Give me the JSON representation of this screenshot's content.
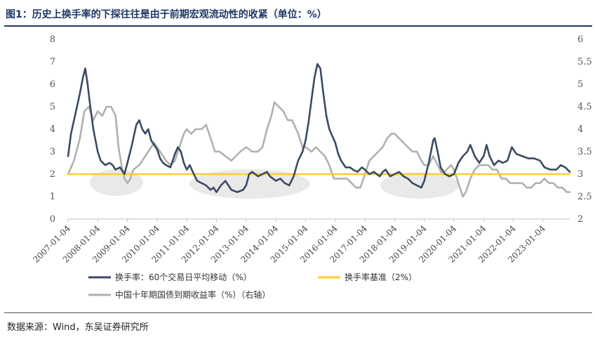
{
  "title": "图1：历史上换手率的下探往往是由于前期宏观流动性的收紧（单位：%）",
  "source": "数据来源：Wind，东吴证券研究所",
  "chart_data": {
    "type": "line",
    "title": "图1：历史上换手率的下探往往是由于前期宏观流动性的收紧（单位：%）",
    "xlabel": "",
    "ylabel": "",
    "y_left": {
      "min": 0,
      "max": 8,
      "ticks": [
        "0",
        "1",
        "2",
        "3",
        "4",
        "5",
        "6",
        "7",
        "8"
      ]
    },
    "y_right": {
      "min": 2,
      "max": 6,
      "ticks": [
        "2",
        "2.5",
        "3",
        "3.5",
        "4",
        "4.5",
        "5",
        "5.5",
        "6"
      ]
    },
    "x_ticks": [
      "2007-01-04",
      "2008-01-04",
      "2009-01-04",
      "2010-01-04",
      "2011-01-04",
      "2012-01-04",
      "2013-01-04",
      "2014-01-04",
      "2015-01-04",
      "2016-01-04",
      "2017-01-04",
      "2018-01-04",
      "2019-01-04",
      "2020-01-04",
      "2021-01-04",
      "2022-01-04",
      "2023-01-04"
    ],
    "x_range": [
      2007.0,
      2023.9
    ],
    "grid": false,
    "legend_position": "bottom",
    "series": [
      {
        "name": "换手率：60个交易日平均移动（%）",
        "axis": "left",
        "color": "#3b4a63",
        "points": [
          [
            2007.0,
            2.8
          ],
          [
            2007.1,
            3.8
          ],
          [
            2007.25,
            4.7
          ],
          [
            2007.4,
            5.6
          ],
          [
            2007.5,
            6.3
          ],
          [
            2007.58,
            6.7
          ],
          [
            2007.66,
            6.0
          ],
          [
            2007.75,
            5.0
          ],
          [
            2007.85,
            4.0
          ],
          [
            2008.0,
            3.0
          ],
          [
            2008.1,
            2.6
          ],
          [
            2008.25,
            2.4
          ],
          [
            2008.4,
            2.5
          ],
          [
            2008.5,
            2.4
          ],
          [
            2008.6,
            2.2
          ],
          [
            2008.75,
            2.3
          ],
          [
            2008.9,
            2.0
          ],
          [
            2009.0,
            2.5
          ],
          [
            2009.15,
            3.3
          ],
          [
            2009.3,
            4.2
          ],
          [
            2009.4,
            4.4
          ],
          [
            2009.5,
            4.0
          ],
          [
            2009.6,
            3.8
          ],
          [
            2009.7,
            4.0
          ],
          [
            2009.8,
            3.5
          ],
          [
            2009.9,
            3.3
          ],
          [
            2010.0,
            3.1
          ],
          [
            2010.1,
            2.7
          ],
          [
            2010.2,
            2.5
          ],
          [
            2010.3,
            2.4
          ],
          [
            2010.45,
            2.3
          ],
          [
            2010.6,
            2.9
          ],
          [
            2010.7,
            3.2
          ],
          [
            2010.8,
            3.0
          ],
          [
            2010.9,
            2.5
          ],
          [
            2011.0,
            2.2
          ],
          [
            2011.1,
            2.4
          ],
          [
            2011.2,
            2.1
          ],
          [
            2011.35,
            1.7
          ],
          [
            2011.5,
            1.6
          ],
          [
            2011.65,
            1.5
          ],
          [
            2011.8,
            1.3
          ],
          [
            2011.9,
            1.4
          ],
          [
            2012.0,
            1.2
          ],
          [
            2012.15,
            1.5
          ],
          [
            2012.3,
            1.7
          ],
          [
            2012.4,
            1.5
          ],
          [
            2012.5,
            1.3
          ],
          [
            2012.7,
            1.2
          ],
          [
            2012.9,
            1.3
          ],
          [
            2013.0,
            1.5
          ],
          [
            2013.1,
            2.0
          ],
          [
            2013.2,
            2.1
          ],
          [
            2013.4,
            1.9
          ],
          [
            2013.55,
            2.0
          ],
          [
            2013.7,
            2.1
          ],
          [
            2013.8,
            1.9
          ],
          [
            2014.0,
            1.7
          ],
          [
            2014.15,
            1.8
          ],
          [
            2014.3,
            1.6
          ],
          [
            2014.45,
            1.5
          ],
          [
            2014.6,
            1.9
          ],
          [
            2014.75,
            2.6
          ],
          [
            2014.9,
            3.0
          ],
          [
            2015.0,
            3.5
          ],
          [
            2015.1,
            4.3
          ],
          [
            2015.2,
            5.3
          ],
          [
            2015.3,
            6.3
          ],
          [
            2015.4,
            6.9
          ],
          [
            2015.5,
            6.7
          ],
          [
            2015.6,
            5.6
          ],
          [
            2015.7,
            4.6
          ],
          [
            2015.8,
            4.0
          ],
          [
            2015.9,
            3.7
          ],
          [
            2016.0,
            3.4
          ],
          [
            2016.1,
            2.9
          ],
          [
            2016.2,
            2.6
          ],
          [
            2016.35,
            2.3
          ],
          [
            2016.5,
            2.3
          ],
          [
            2016.6,
            2.2
          ],
          [
            2016.75,
            2.1
          ],
          [
            2016.9,
            2.3
          ],
          [
            2017.0,
            2.2
          ],
          [
            2017.15,
            2.0
          ],
          [
            2017.3,
            2.1
          ],
          [
            2017.5,
            1.9
          ],
          [
            2017.6,
            2.1
          ],
          [
            2017.7,
            2.2
          ],
          [
            2017.85,
            1.9
          ],
          [
            2018.0,
            2.0
          ],
          [
            2018.15,
            2.1
          ],
          [
            2018.3,
            1.9
          ],
          [
            2018.45,
            1.8
          ],
          [
            2018.6,
            1.6
          ],
          [
            2018.75,
            1.5
          ],
          [
            2018.9,
            1.4
          ],
          [
            2019.0,
            1.7
          ],
          [
            2019.15,
            2.5
          ],
          [
            2019.3,
            3.5
          ],
          [
            2019.35,
            3.6
          ],
          [
            2019.45,
            3.0
          ],
          [
            2019.55,
            2.3
          ],
          [
            2019.7,
            2.0
          ],
          [
            2019.85,
            1.9
          ],
          [
            2020.0,
            2.0
          ],
          [
            2020.15,
            2.5
          ],
          [
            2020.3,
            2.8
          ],
          [
            2020.45,
            3.0
          ],
          [
            2020.55,
            3.3
          ],
          [
            2020.7,
            2.8
          ],
          [
            2020.85,
            2.5
          ],
          [
            2021.0,
            2.8
          ],
          [
            2021.1,
            3.3
          ],
          [
            2021.2,
            2.8
          ],
          [
            2021.35,
            2.4
          ],
          [
            2021.5,
            2.6
          ],
          [
            2021.65,
            2.5
          ],
          [
            2021.8,
            2.6
          ],
          [
            2021.95,
            3.2
          ],
          [
            2022.1,
            2.9
          ],
          [
            2022.3,
            2.8
          ],
          [
            2022.5,
            2.7
          ],
          [
            2022.7,
            2.7
          ],
          [
            2022.9,
            2.6
          ],
          [
            2023.05,
            2.3
          ],
          [
            2023.25,
            2.2
          ],
          [
            2023.45,
            2.2
          ],
          [
            2023.6,
            2.4
          ],
          [
            2023.75,
            2.3
          ],
          [
            2023.9,
            2.1
          ]
        ]
      },
      {
        "name": "换手率基准（2%）",
        "axis": "left",
        "color": "#ffcc33",
        "points": [
          [
            2007.0,
            2.0
          ],
          [
            2023.9,
            2.0
          ]
        ]
      },
      {
        "name": "中国十年期国债到期收益率（%）（右轴）",
        "axis": "right",
        "color": "#b0b0b0",
        "points": [
          [
            2007.0,
            3.0
          ],
          [
            2007.2,
            3.3
          ],
          [
            2007.4,
            3.8
          ],
          [
            2007.55,
            4.4
          ],
          [
            2007.7,
            4.5
          ],
          [
            2007.85,
            4.2
          ],
          [
            2008.0,
            4.4
          ],
          [
            2008.15,
            4.3
          ],
          [
            2008.3,
            4.5
          ],
          [
            2008.45,
            4.5
          ],
          [
            2008.6,
            4.3
          ],
          [
            2008.7,
            3.6
          ],
          [
            2008.8,
            3.2
          ],
          [
            2008.9,
            2.9
          ],
          [
            2009.0,
            2.8
          ],
          [
            2009.1,
            2.9
          ],
          [
            2009.2,
            3.1
          ],
          [
            2009.4,
            3.2
          ],
          [
            2009.6,
            3.4
          ],
          [
            2009.8,
            3.6
          ],
          [
            2009.9,
            3.7
          ],
          [
            2010.0,
            3.6
          ],
          [
            2010.1,
            3.5
          ],
          [
            2010.3,
            3.3
          ],
          [
            2010.45,
            3.2
          ],
          [
            2010.6,
            3.3
          ],
          [
            2010.75,
            3.6
          ],
          [
            2010.9,
            3.9
          ],
          [
            2011.0,
            4.0
          ],
          [
            2011.15,
            3.9
          ],
          [
            2011.3,
            4.0
          ],
          [
            2011.5,
            4.0
          ],
          [
            2011.65,
            4.1
          ],
          [
            2011.8,
            3.8
          ],
          [
            2011.95,
            3.5
          ],
          [
            2012.1,
            3.5
          ],
          [
            2012.3,
            3.4
          ],
          [
            2012.5,
            3.3
          ],
          [
            2012.65,
            3.4
          ],
          [
            2012.8,
            3.5
          ],
          [
            2013.0,
            3.6
          ],
          [
            2013.2,
            3.5
          ],
          [
            2013.4,
            3.5
          ],
          [
            2013.55,
            3.6
          ],
          [
            2013.7,
            4.0
          ],
          [
            2013.85,
            4.3
          ],
          [
            2013.95,
            4.6
          ],
          [
            2014.1,
            4.5
          ],
          [
            2014.25,
            4.4
          ],
          [
            2014.4,
            4.2
          ],
          [
            2014.55,
            4.2
          ],
          [
            2014.75,
            3.9
          ],
          [
            2014.9,
            3.6
          ],
          [
            2015.0,
            3.6
          ],
          [
            2015.2,
            3.5
          ],
          [
            2015.35,
            3.6
          ],
          [
            2015.5,
            3.5
          ],
          [
            2015.65,
            3.4
          ],
          [
            2015.8,
            3.2
          ],
          [
            2015.95,
            2.9
          ],
          [
            2016.1,
            2.9
          ],
          [
            2016.25,
            2.9
          ],
          [
            2016.4,
            2.9
          ],
          [
            2016.55,
            2.8
          ],
          [
            2016.7,
            2.7
          ],
          [
            2016.85,
            2.7
          ],
          [
            2017.0,
            3.0
          ],
          [
            2017.15,
            3.3
          ],
          [
            2017.3,
            3.4
          ],
          [
            2017.45,
            3.5
          ],
          [
            2017.6,
            3.6
          ],
          [
            2017.75,
            3.8
          ],
          [
            2017.9,
            3.9
          ],
          [
            2018.0,
            3.9
          ],
          [
            2018.15,
            3.8
          ],
          [
            2018.3,
            3.7
          ],
          [
            2018.45,
            3.6
          ],
          [
            2018.6,
            3.5
          ],
          [
            2018.75,
            3.5
          ],
          [
            2018.9,
            3.3
          ],
          [
            2019.0,
            3.2
          ],
          [
            2019.15,
            3.2
          ],
          [
            2019.3,
            3.4
          ],
          [
            2019.45,
            3.2
          ],
          [
            2019.6,
            3.0
          ],
          [
            2019.75,
            3.1
          ],
          [
            2019.9,
            3.2
          ],
          [
            2020.0,
            3.1
          ],
          [
            2020.15,
            2.8
          ],
          [
            2020.3,
            2.5
          ],
          [
            2020.4,
            2.6
          ],
          [
            2020.55,
            2.9
          ],
          [
            2020.7,
            3.1
          ],
          [
            2020.85,
            3.2
          ],
          [
            2021.0,
            3.2
          ],
          [
            2021.15,
            3.2
          ],
          [
            2021.3,
            3.1
          ],
          [
            2021.45,
            3.1
          ],
          [
            2021.6,
            2.9
          ],
          [
            2021.75,
            2.9
          ],
          [
            2021.9,
            2.8
          ],
          [
            2022.0,
            2.8
          ],
          [
            2022.15,
            2.8
          ],
          [
            2022.3,
            2.8
          ],
          [
            2022.45,
            2.7
          ],
          [
            2022.6,
            2.7
          ],
          [
            2022.75,
            2.8
          ],
          [
            2022.9,
            2.8
          ],
          [
            2023.05,
            2.9
          ],
          [
            2023.2,
            2.8
          ],
          [
            2023.35,
            2.8
          ],
          [
            2023.5,
            2.7
          ],
          [
            2023.65,
            2.7
          ],
          [
            2023.8,
            2.6
          ],
          [
            2023.9,
            2.6
          ]
        ]
      }
    ]
  }
}
